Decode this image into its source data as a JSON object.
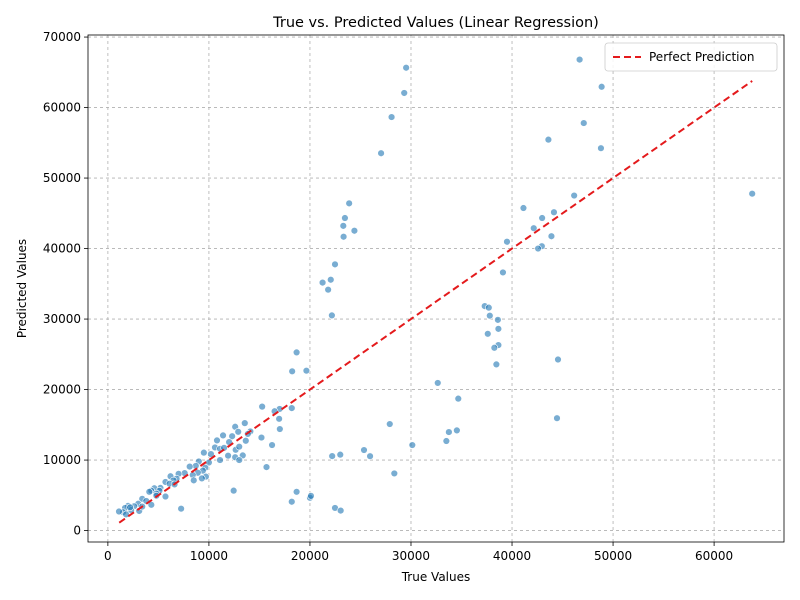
{
  "chart_data": {
    "type": "scatter",
    "title": "True vs. Predicted Values (Linear Regression)",
    "xlabel": "True Values",
    "ylabel": "Predicted Values",
    "xlim": [
      -1967,
      66918
    ],
    "ylim": [
      -1622,
      70292
    ],
    "xticks": [
      0,
      10000,
      20000,
      30000,
      40000,
      50000,
      60000
    ],
    "yticks": [
      0,
      10000,
      20000,
      30000,
      40000,
      50000,
      60000,
      70000
    ],
    "grid": true,
    "legend": {
      "placement": "top-right",
      "entries": [
        {
          "label": "Perfect Prediction",
          "style": "red-dashed-line"
        }
      ]
    },
    "colors": {
      "points": "#1f77b4",
      "reference_line": "#e41a1c"
    },
    "reference_line": {
      "x": [
        1122,
        63770
      ],
      "y": [
        1122,
        63770
      ]
    },
    "series": [
      {
        "style": "scatter-points",
        "points": [
          [
            46690,
            66800
          ],
          [
            29520,
            65650
          ],
          [
            48870,
            62950
          ],
          [
            29330,
            62070
          ],
          [
            28080,
            58650
          ],
          [
            47100,
            57800
          ],
          [
            43600,
            55450
          ],
          [
            27040,
            53520
          ],
          [
            48800,
            54240
          ],
          [
            46150,
            47520
          ],
          [
            63770,
            47780
          ],
          [
            23880,
            46410
          ],
          [
            41130,
            45750
          ],
          [
            44150,
            45150
          ],
          [
            23460,
            44330
          ],
          [
            42980,
            44330
          ],
          [
            24400,
            42530
          ],
          [
            23300,
            43220
          ],
          [
            42150,
            42890
          ],
          [
            23330,
            41680
          ],
          [
            43900,
            41750
          ],
          [
            39500,
            40970
          ],
          [
            42950,
            40340
          ],
          [
            42580,
            40000
          ],
          [
            22480,
            37760
          ],
          [
            39100,
            36610
          ],
          [
            22060,
            35580
          ],
          [
            21250,
            35170
          ],
          [
            21800,
            34170
          ],
          [
            37300,
            31840
          ],
          [
            37700,
            31620
          ],
          [
            22170,
            30520
          ],
          [
            37800,
            30480
          ],
          [
            38600,
            29890
          ],
          [
            38650,
            28610
          ],
          [
            37600,
            27910
          ],
          [
            38650,
            26310
          ],
          [
            38250,
            25930
          ],
          [
            18680,
            25270
          ],
          [
            44550,
            24260
          ],
          [
            38450,
            23570
          ],
          [
            19650,
            22680
          ],
          [
            18240,
            22590
          ],
          [
            32650,
            20940
          ],
          [
            34680,
            18710
          ],
          [
            15270,
            17580
          ],
          [
            18200,
            17370
          ],
          [
            17000,
            17250
          ],
          [
            16500,
            16920
          ],
          [
            44450,
            15940
          ],
          [
            16950,
            15850
          ],
          [
            13550,
            15240
          ],
          [
            27900,
            15110
          ],
          [
            12600,
            14720
          ],
          [
            34540,
            14210
          ],
          [
            33750,
            13970
          ],
          [
            17020,
            14400
          ],
          [
            14100,
            14060
          ],
          [
            13850,
            13700
          ],
          [
            12900,
            14010
          ],
          [
            12300,
            13380
          ],
          [
            11400,
            13500
          ],
          [
            10800,
            12790
          ],
          [
            12000,
            12550
          ],
          [
            13650,
            12740
          ],
          [
            15200,
            13190
          ],
          [
            16250,
            12130
          ],
          [
            33500,
            12700
          ],
          [
            30130,
            12130
          ],
          [
            10600,
            11790
          ],
          [
            11100,
            11590
          ],
          [
            11500,
            11730
          ],
          [
            12650,
            11460
          ],
          [
            13000,
            11900
          ],
          [
            9500,
            11050
          ],
          [
            10200,
            10850
          ],
          [
            11900,
            10620
          ],
          [
            12600,
            10400
          ],
          [
            13350,
            10660
          ],
          [
            13000,
            10000
          ],
          [
            11100,
            10000
          ],
          [
            9000,
            9800
          ],
          [
            10000,
            9650
          ],
          [
            25350,
            11420
          ],
          [
            22200,
            10560
          ],
          [
            23000,
            10770
          ],
          [
            25950,
            10550
          ],
          [
            15700,
            9000
          ],
          [
            8700,
            9170
          ],
          [
            9650,
            8920
          ],
          [
            8100,
            9070
          ],
          [
            9400,
            8500
          ],
          [
            8900,
            8200
          ],
          [
            7600,
            8150
          ],
          [
            7000,
            8050
          ],
          [
            8400,
            7880
          ],
          [
            9700,
            7650
          ],
          [
            8500,
            7120
          ],
          [
            9300,
            7400
          ],
          [
            6800,
            7350
          ],
          [
            6200,
            7700
          ],
          [
            6500,
            7110
          ],
          [
            5700,
            6890
          ],
          [
            6100,
            6650
          ],
          [
            6600,
            6550
          ],
          [
            5200,
            6050
          ],
          [
            4600,
            6000
          ],
          [
            4300,
            5650
          ],
          [
            5100,
            5650
          ],
          [
            4800,
            5250
          ],
          [
            4100,
            5500
          ],
          [
            4800,
            4950
          ],
          [
            5700,
            4830
          ],
          [
            3400,
            4500
          ],
          [
            3800,
            4200
          ],
          [
            4300,
            3650
          ],
          [
            3000,
            3800
          ],
          [
            2600,
            3450
          ],
          [
            2000,
            3500
          ],
          [
            1700,
            3200
          ],
          [
            2300,
            2900
          ],
          [
            1500,
            2600
          ],
          [
            1100,
            2700
          ],
          [
            1800,
            2300
          ],
          [
            3100,
            2780
          ],
          [
            2200,
            3300
          ],
          [
            3400,
            3400
          ],
          [
            28350,
            8100
          ],
          [
            12450,
            5660
          ],
          [
            18680,
            5500
          ],
          [
            20000,
            4650
          ],
          [
            20100,
            4920
          ],
          [
            18200,
            4090
          ],
          [
            7250,
            3100
          ],
          [
            22480,
            3210
          ],
          [
            23040,
            2830
          ]
        ]
      }
    ]
  }
}
